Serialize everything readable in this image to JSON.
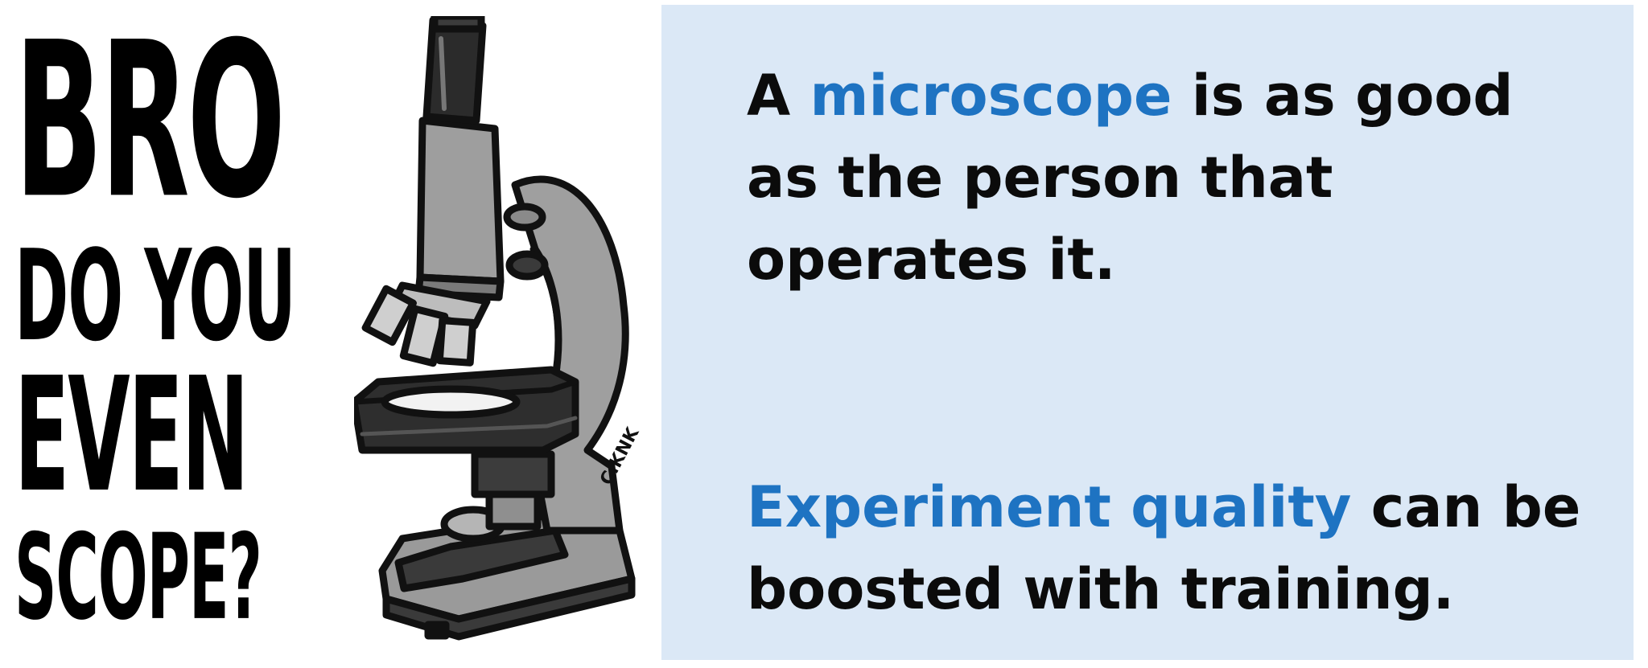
{
  "meme": {
    "line1": "BRO",
    "line2": "DO YOU",
    "line3": "EVEN",
    "line4": "SCOPE?"
  },
  "illustration": {
    "icon": "microscope-icon",
    "signature": "C.KNK"
  },
  "statements": [
    {
      "line1_prefix": "A ",
      "highlight": "microscope",
      "line1_suffix": " is as good",
      "line2": "as the person that",
      "line3": "operates it."
    },
    {
      "highlight": "Experiment quality",
      "line1_suffix": " can be",
      "line2": "boosted with training."
    }
  ],
  "colors": {
    "accent": "#1e73c2",
    "panel_background": "#dbe8f6",
    "text": "#0b0b0b"
  }
}
